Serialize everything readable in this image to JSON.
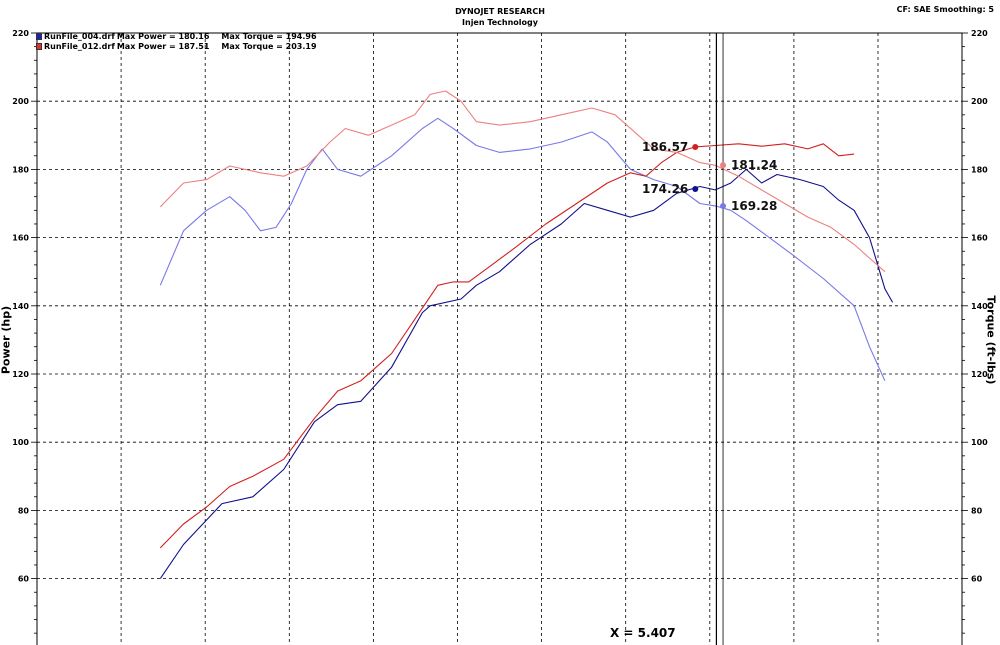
{
  "header": {
    "title": "DYNOJET RESEARCH",
    "subtitle": "Injen Technology",
    "settings": "CF: SAE  Smoothing: 5"
  },
  "legend": [
    {
      "file": "RunFile_004.drf",
      "max_power": "Max Power = 180.16",
      "max_torque": "Max Torque = 194.96",
      "color": "#1f1fc4"
    },
    {
      "file": "RunFile_012.drf",
      "max_power": "Max Power = 187.51",
      "max_torque": "Max Torque = 203.19",
      "color": "#e03030"
    }
  ],
  "cursor_readout": "X = 5.407",
  "chart_data": {
    "type": "line",
    "ylabel": "Power (hp)",
    "y2label": "Torque (ft-lbs)",
    "ylim": [
      40,
      220
    ],
    "y2lim": [
      40,
      220
    ],
    "y_ticks": [
      60,
      80,
      100,
      120,
      140,
      160,
      180,
      200,
      220
    ],
    "grid": true,
    "legend_position": "top-left",
    "cursor_x": 5.407,
    "x_labels_visible": false,
    "series": [
      {
        "name": "RunFile_004.drf",
        "quantity": "Power",
        "color": "#10108a",
        "points": [
          [
            1.8,
            60
          ],
          [
            1.95,
            70
          ],
          [
            2.2,
            82
          ],
          [
            2.4,
            84
          ],
          [
            2.6,
            92
          ],
          [
            2.8,
            106
          ],
          [
            2.95,
            111
          ],
          [
            3.1,
            112
          ],
          [
            3.3,
            122
          ],
          [
            3.5,
            138
          ],
          [
            3.55,
            140
          ],
          [
            3.75,
            142
          ],
          [
            3.85,
            146
          ],
          [
            4.0,
            150
          ],
          [
            4.2,
            158
          ],
          [
            4.4,
            164
          ],
          [
            4.55,
            170
          ],
          [
            4.7,
            168
          ],
          [
            4.85,
            166
          ],
          [
            5.0,
            168
          ],
          [
            5.15,
            173
          ],
          [
            5.3,
            175
          ],
          [
            5.4,
            174
          ],
          [
            5.5,
            176
          ],
          [
            5.6,
            180
          ],
          [
            5.7,
            176
          ],
          [
            5.8,
            178.5
          ],
          [
            5.95,
            177
          ],
          [
            6.1,
            175
          ],
          [
            6.2,
            171
          ],
          [
            6.3,
            168
          ],
          [
            6.4,
            160
          ],
          [
            6.5,
            145
          ],
          [
            6.55,
            141
          ]
        ]
      },
      {
        "name": "RunFile_004.drf",
        "quantity": "Torque",
        "color": "#7878e8",
        "points": [
          [
            1.8,
            146
          ],
          [
            1.95,
            162
          ],
          [
            2.1,
            168
          ],
          [
            2.25,
            172
          ],
          [
            2.35,
            168
          ],
          [
            2.45,
            162
          ],
          [
            2.55,
            163
          ],
          [
            2.65,
            170
          ],
          [
            2.75,
            180
          ],
          [
            2.85,
            186
          ],
          [
            2.95,
            180
          ],
          [
            3.1,
            178
          ],
          [
            3.3,
            184
          ],
          [
            3.5,
            192
          ],
          [
            3.6,
            195
          ],
          [
            3.7,
            192
          ],
          [
            3.85,
            187
          ],
          [
            4.0,
            185
          ],
          [
            4.2,
            186
          ],
          [
            4.4,
            188
          ],
          [
            4.6,
            191
          ],
          [
            4.7,
            188
          ],
          [
            4.85,
            180
          ],
          [
            5.0,
            177
          ],
          [
            5.15,
            175
          ],
          [
            5.3,
            170
          ],
          [
            5.4,
            169.3
          ],
          [
            5.5,
            168
          ],
          [
            5.6,
            165
          ],
          [
            5.75,
            160
          ],
          [
            5.9,
            155
          ],
          [
            6.1,
            148
          ],
          [
            6.3,
            140
          ],
          [
            6.4,
            128
          ],
          [
            6.5,
            118
          ]
        ]
      },
      {
        "name": "RunFile_012.drf",
        "quantity": "Power",
        "color": "#d02020",
        "points": [
          [
            1.8,
            69
          ],
          [
            1.95,
            76
          ],
          [
            2.1,
            81
          ],
          [
            2.25,
            87
          ],
          [
            2.4,
            90
          ],
          [
            2.6,
            95
          ],
          [
            2.8,
            107
          ],
          [
            2.95,
            115
          ],
          [
            3.1,
            118
          ],
          [
            3.3,
            126
          ],
          [
            3.45,
            136
          ],
          [
            3.6,
            146
          ],
          [
            3.7,
            147
          ],
          [
            3.8,
            147
          ],
          [
            3.95,
            152
          ],
          [
            4.1,
            157
          ],
          [
            4.3,
            164
          ],
          [
            4.5,
            170
          ],
          [
            4.7,
            176
          ],
          [
            4.85,
            179
          ],
          [
            4.95,
            178
          ],
          [
            5.05,
            182
          ],
          [
            5.15,
            185
          ],
          [
            5.27,
            186.6
          ],
          [
            5.4,
            187
          ],
          [
            5.55,
            187.5
          ],
          [
            5.7,
            186.8
          ],
          [
            5.85,
            187.5
          ],
          [
            6.0,
            186
          ],
          [
            6.1,
            187.5
          ],
          [
            6.2,
            184
          ],
          [
            6.3,
            184.5
          ]
        ]
      },
      {
        "name": "RunFile_012.drf",
        "quantity": "Torque",
        "color": "#ec8080",
        "points": [
          [
            1.8,
            169
          ],
          [
            1.95,
            176
          ],
          [
            2.1,
            177
          ],
          [
            2.25,
            181
          ],
          [
            2.45,
            179
          ],
          [
            2.6,
            178
          ],
          [
            2.75,
            181
          ],
          [
            2.9,
            188
          ],
          [
            3.0,
            192
          ],
          [
            3.15,
            190
          ],
          [
            3.3,
            193
          ],
          [
            3.45,
            196
          ],
          [
            3.55,
            202
          ],
          [
            3.65,
            203
          ],
          [
            3.75,
            200
          ],
          [
            3.85,
            194
          ],
          [
            4.0,
            193
          ],
          [
            4.2,
            194
          ],
          [
            4.4,
            196
          ],
          [
            4.6,
            198
          ],
          [
            4.75,
            196
          ],
          [
            4.9,
            190
          ],
          [
            5.0,
            186
          ],
          [
            5.15,
            185
          ],
          [
            5.3,
            182
          ],
          [
            5.4,
            181.2
          ],
          [
            5.55,
            178
          ],
          [
            5.7,
            174
          ],
          [
            5.85,
            170
          ],
          [
            6.0,
            166
          ],
          [
            6.15,
            163
          ],
          [
            6.3,
            158
          ],
          [
            6.4,
            154
          ],
          [
            6.5,
            150
          ]
        ]
      }
    ],
    "markers": [
      {
        "label": "186.57",
        "x": 5.27,
        "y": 186.57,
        "color": "#d02020",
        "side": "left"
      },
      {
        "label": "181.24",
        "x": 5.45,
        "y": 181.24,
        "color": "#ec8080",
        "side": "right"
      },
      {
        "label": "174.26",
        "x": 5.27,
        "y": 174.26,
        "color": "#10108a",
        "side": "left"
      },
      {
        "label": "169.28",
        "x": 5.45,
        "y": 169.28,
        "color": "#7878e8",
        "side": "right"
      }
    ]
  }
}
